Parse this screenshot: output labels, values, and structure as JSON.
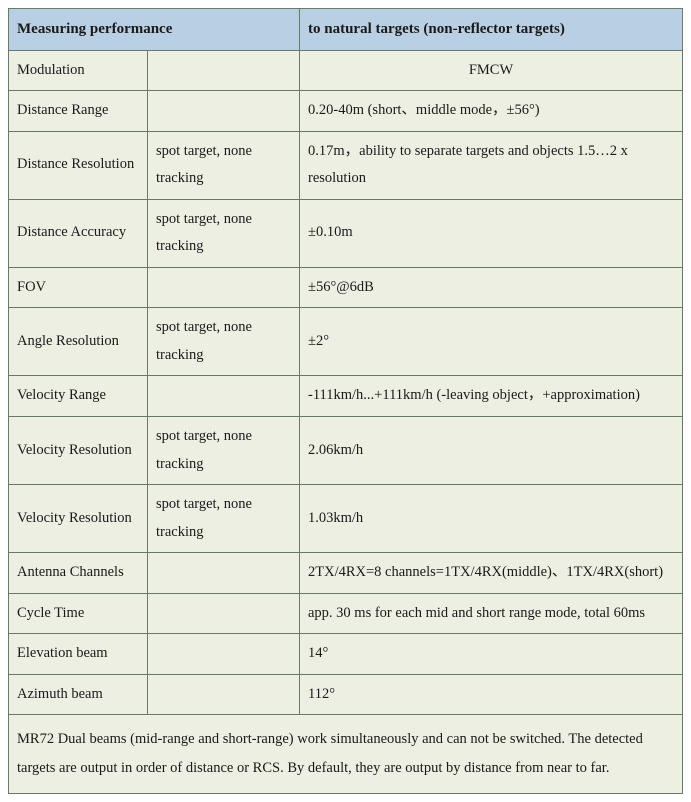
{
  "header": {
    "left": "Measuring performance",
    "right": "to natural targets (non-reflector targets)"
  },
  "rows": [
    {
      "c1": "Modulation",
      "c2": "",
      "c3": "FMCW",
      "c3_center": true
    },
    {
      "c1": "Distance Range",
      "c2": "",
      "c3": "0.20-40m (short、middle mode，±56°)"
    },
    {
      "c1": "Distance Resolution",
      "c2": "spot target, none tracking",
      "c3": "0.17m，ability to separate targets and objects 1.5…2 x resolution"
    },
    {
      "c1": "Distance Accuracy",
      "c2": "spot target, none tracking",
      "c3": "±0.10m"
    },
    {
      "c1": "FOV",
      "c2": "",
      "c3": "±56°@6dB"
    },
    {
      "c1": "Angle Resolution",
      "c2": "spot target, none tracking",
      "c3": "±2°"
    },
    {
      "c1": "Velocity Range",
      "c2": "",
      "c3": "-111km/h...+111km/h (-leaving object，+approximation)"
    },
    {
      "c1": "Velocity Resolution",
      "c2": "spot target, none tracking",
      "c3": "2.06km/h"
    },
    {
      "c1": "Velocity Resolution",
      "c2": "spot target, none tracking",
      "c3": "1.03km/h"
    },
    {
      "c1": "Antenna Channels",
      "c2": "",
      "c3": "2TX/4RX=8 channels=1TX/4RX(middle)、1TX/4RX(short)"
    },
    {
      "c1": "Cycle Time",
      "c2": "",
      "c3": "app. 30 ms for each mid and short range mode, total 60ms"
    },
    {
      "c1": "Elevation beam",
      "c2": "",
      "c3": "14°"
    },
    {
      "c1": "Azimuth beam",
      "c2": "",
      "c3": "112°"
    }
  ],
  "footer": "MR72 Dual beams (mid-range and short-range) work simultaneously and can not be switched. The detected targets are output in order of distance or RCS. By default, they are output by distance from near to far.",
  "style": {
    "header_bg": "#b9cfe4",
    "body_bg": "#ecefe2",
    "border_color": "#6a7a6a",
    "font_family": "Times New Roman",
    "base_fontsize_pt": 11
  }
}
